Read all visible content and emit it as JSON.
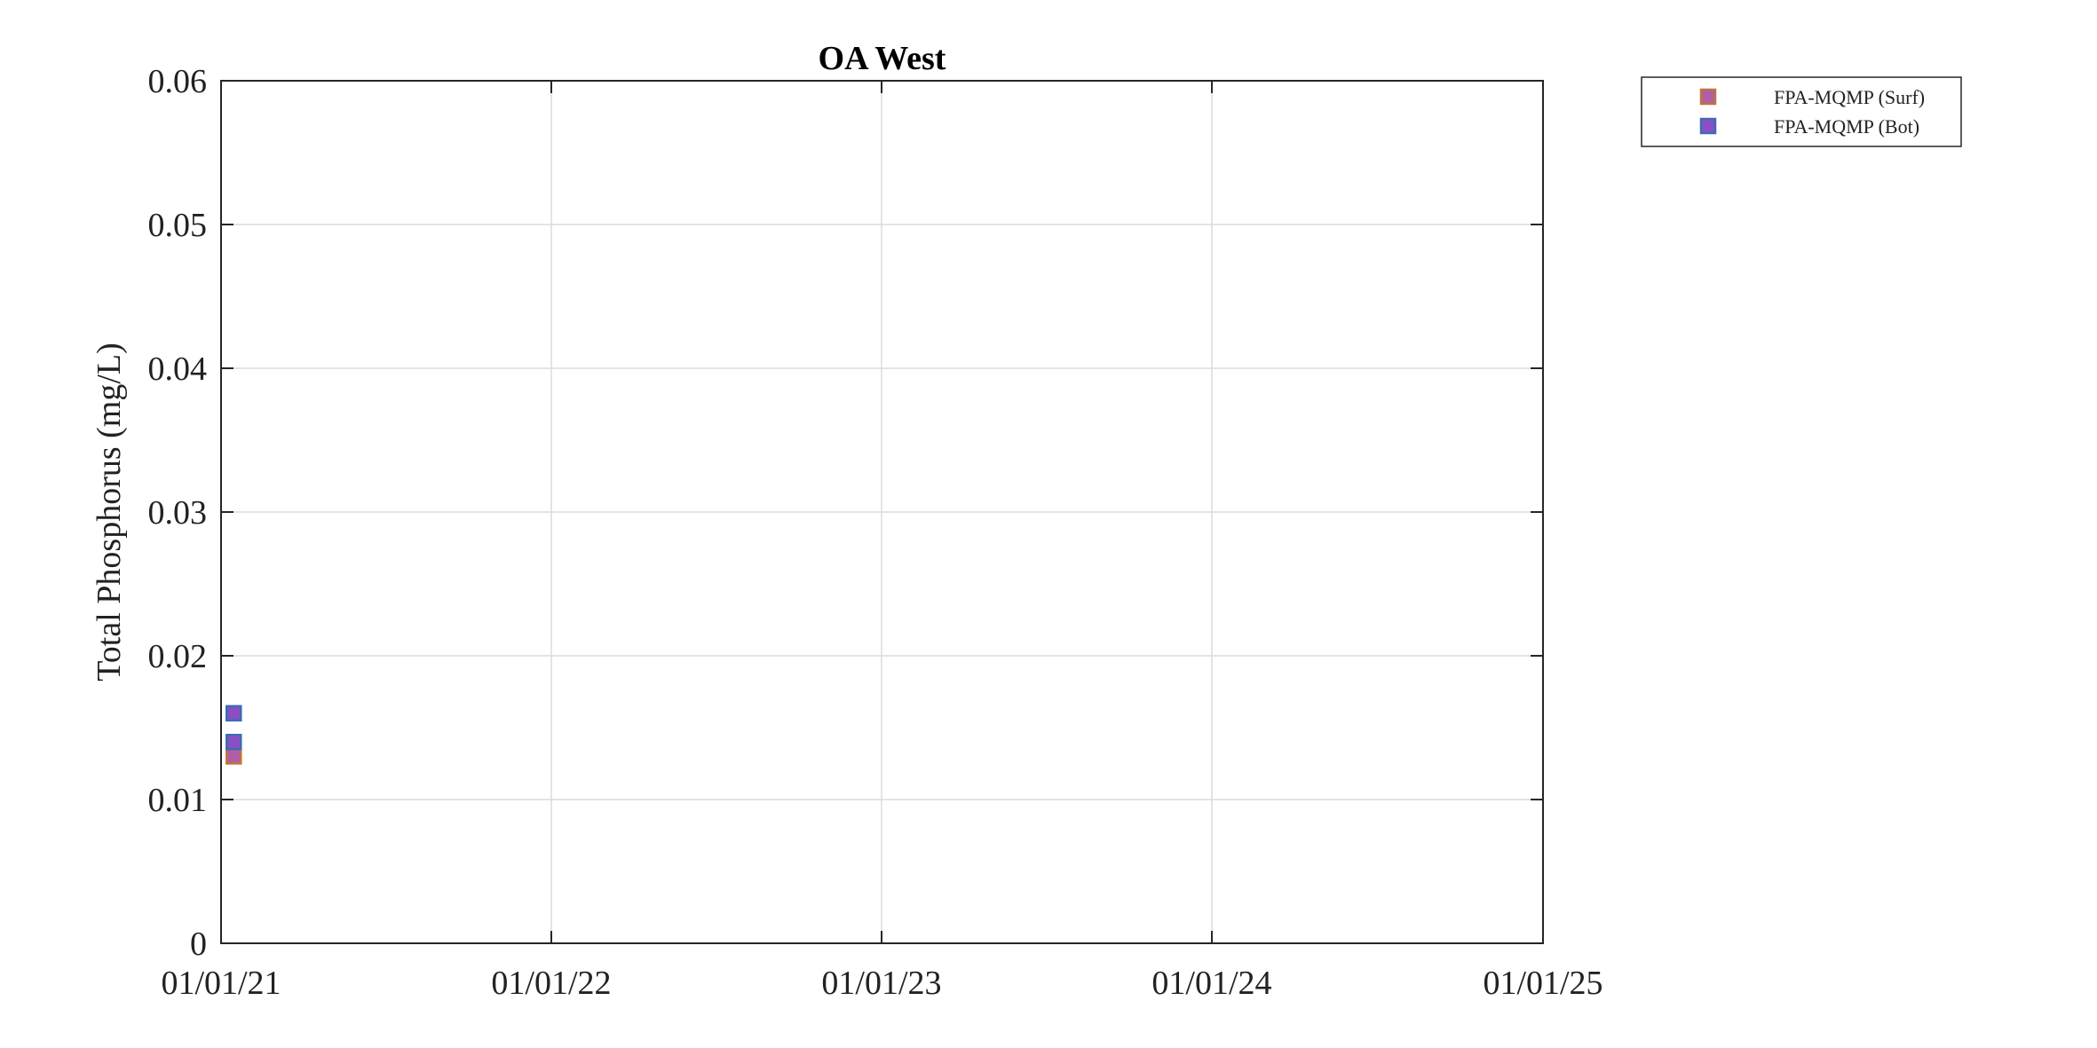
{
  "chart_data": {
    "type": "scatter",
    "title": "OA West",
    "xlabel": "",
    "ylabel": "Total Phosphorus (mg/L)",
    "x_axis": {
      "type": "date",
      "range": [
        "2021-01-01",
        "2025-01-01"
      ],
      "ticks": [
        "2021-01-01",
        "2022-01-01",
        "2023-01-01",
        "2024-01-01",
        "2025-01-01"
      ],
      "tick_labels": [
        "01/01/21",
        "01/01/22",
        "01/01/23",
        "01/01/24",
        "01/01/25"
      ]
    },
    "y_axis": {
      "range": [
        0,
        0.06
      ],
      "ticks": [
        0,
        0.01,
        0.02,
        0.03,
        0.04,
        0.05,
        0.06
      ],
      "tick_labels": [
        "0",
        "0.01",
        "0.02",
        "0.03",
        "0.04",
        "0.05",
        "0.06"
      ]
    },
    "grid": true,
    "legend_position": "outside-top-right",
    "series": [
      {
        "name": "FPA-MQMP (Surf)",
        "marker": "square",
        "fill": "#b05fa6",
        "edge": "#c0743a",
        "points": [
          {
            "x": "2021-01-15",
            "y": 0.013
          },
          {
            "x": "2021-01-15",
            "y": 0.016
          }
        ]
      },
      {
        "name": "FPA-MQMP (Bot)",
        "marker": "square",
        "fill": "#8a4fc4",
        "edge": "#3d6bb3",
        "points": [
          {
            "x": "2021-01-15",
            "y": 0.014
          },
          {
            "x": "2021-01-15",
            "y": 0.016
          }
        ]
      }
    ]
  }
}
